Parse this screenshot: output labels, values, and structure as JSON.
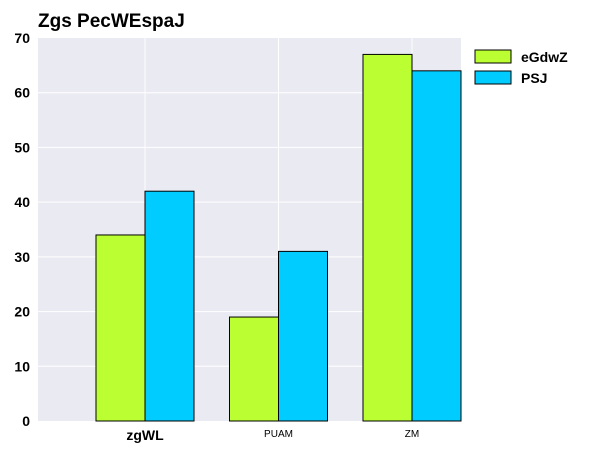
{
  "chart_data": {
    "type": "bar",
    "title": "Zgs PecWEspaJ",
    "categories": [
      "zgWL",
      "PUAM",
      "ZM"
    ],
    "series": [
      {
        "name": "eGdwZ",
        "values": [
          34,
          19,
          67
        ],
        "color": "#bbff33"
      },
      {
        "name": "PSJ",
        "values": [
          42,
          31,
          64
        ],
        "color": "#00ccff"
      }
    ],
    "ylim": [
      0,
      70
    ],
    "yticks": [
      "0",
      "10",
      "20",
      "30",
      "40",
      "50",
      "60",
      "70"
    ],
    "xlabel": "",
    "ylabel": "",
    "grid": true,
    "legend_position": "top-right-outside",
    "background": "#eaeaf2",
    "grid_color": "#ffffff"
  }
}
